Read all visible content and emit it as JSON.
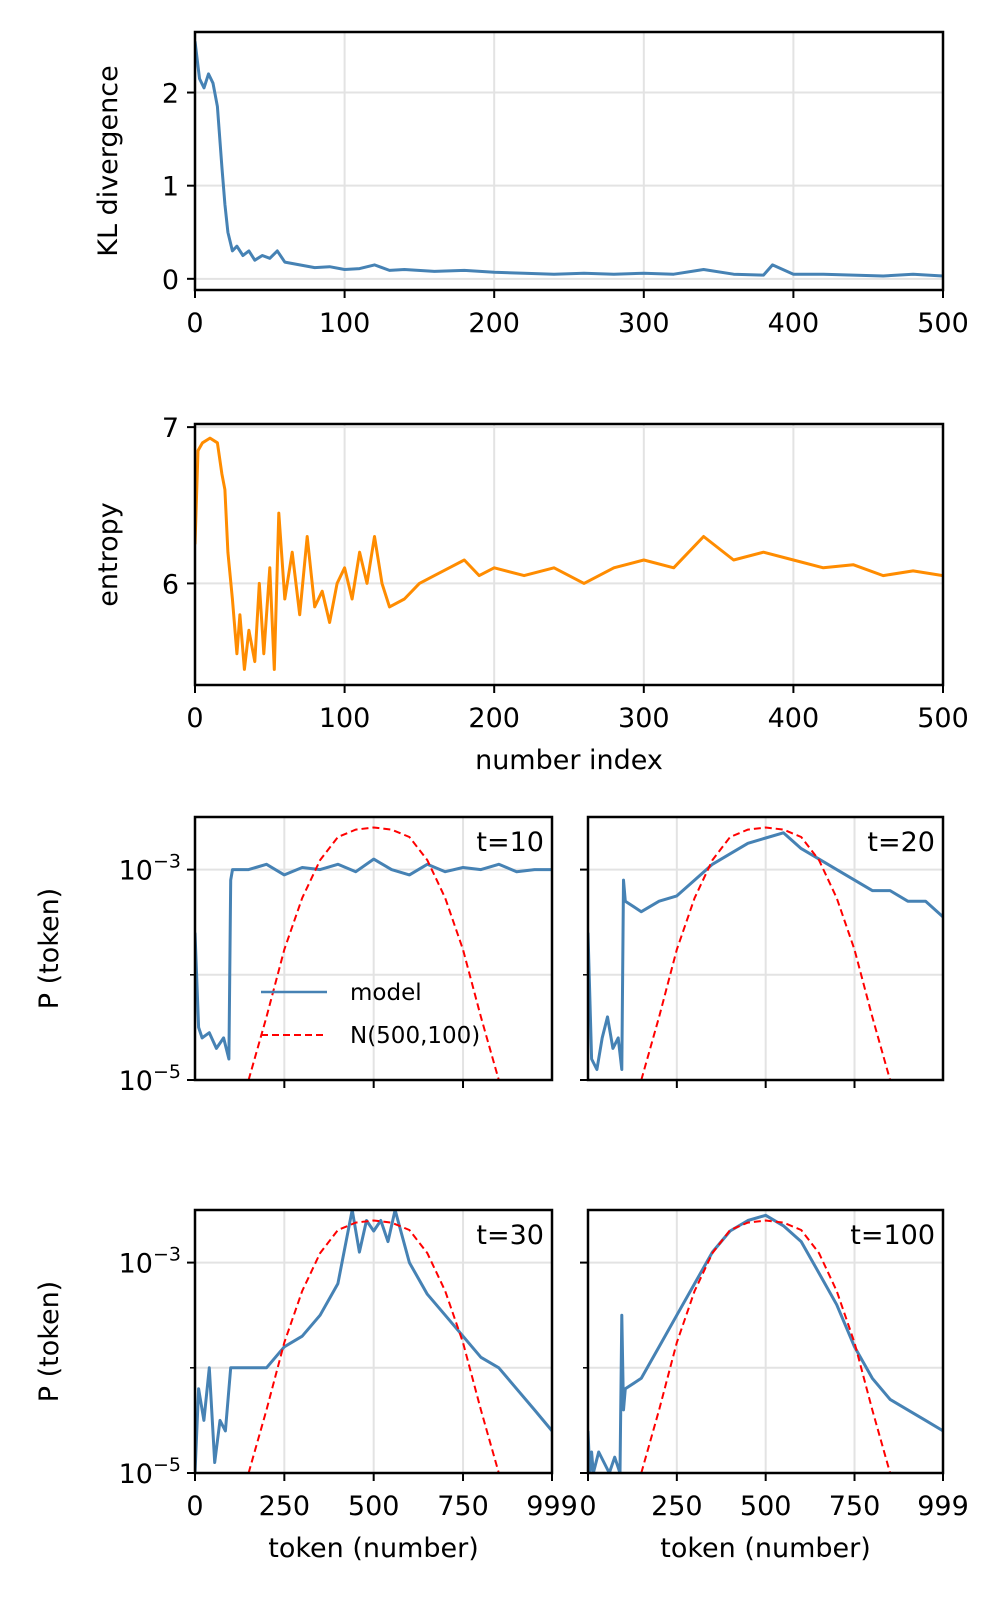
{
  "chart_data": [
    {
      "id": "kl",
      "type": "line",
      "xlabel": "",
      "ylabel": "KL divergence",
      "xlim": [
        0,
        500
      ],
      "ylim": [
        -0.12,
        2.65
      ],
      "xticks": [
        0,
        100,
        200,
        300,
        400,
        500
      ],
      "xtick_labels": [
        "0",
        "100",
        "200",
        "300",
        "400",
        "500"
      ],
      "yticks": [
        0,
        1,
        2
      ],
      "ytick_labels": [
        "0",
        "1",
        "2"
      ],
      "grid": true,
      "color": "#4682b4",
      "series": [
        {
          "name": "KL divergence",
          "x": [
            0,
            3,
            6,
            9,
            12,
            15,
            18,
            20,
            22,
            25,
            28,
            32,
            36,
            40,
            45,
            50,
            55,
            60,
            70,
            80,
            90,
            100,
            110,
            120,
            130,
            140,
            160,
            180,
            200,
            220,
            240,
            260,
            280,
            300,
            320,
            340,
            360,
            380,
            386,
            400,
            420,
            440,
            460,
            480,
            500
          ],
          "values": [
            2.55,
            2.15,
            2.05,
            2.2,
            2.1,
            1.85,
            1.2,
            0.8,
            0.5,
            0.3,
            0.35,
            0.25,
            0.3,
            0.2,
            0.25,
            0.22,
            0.3,
            0.18,
            0.15,
            0.12,
            0.13,
            0.1,
            0.11,
            0.15,
            0.09,
            0.1,
            0.08,
            0.09,
            0.07,
            0.06,
            0.05,
            0.06,
            0.05,
            0.06,
            0.05,
            0.1,
            0.05,
            0.04,
            0.15,
            0.05,
            0.05,
            0.04,
            0.03,
            0.05,
            0.03
          ]
        }
      ]
    },
    {
      "id": "entropy",
      "type": "line",
      "xlabel": "number index",
      "ylabel": "entropy",
      "xlim": [
        0,
        500
      ],
      "ylim": [
        5.35,
        7.02
      ],
      "xticks": [
        0,
        100,
        200,
        300,
        400,
        500
      ],
      "xtick_labels": [
        "0",
        "100",
        "200",
        "300",
        "400",
        "500"
      ],
      "yticks": [
        6,
        7
      ],
      "ytick_labels": [
        "6",
        "7"
      ],
      "grid": true,
      "color": "#ff8c00",
      "series": [
        {
          "name": "entropy",
          "x": [
            0,
            2,
            5,
            10,
            15,
            18,
            20,
            22,
            25,
            28,
            30,
            33,
            36,
            40,
            43,
            46,
            50,
            53,
            56,
            60,
            65,
            70,
            75,
            80,
            85,
            90,
            95,
            100,
            105,
            110,
            115,
            120,
            125,
            130,
            140,
            150,
            160,
            170,
            180,
            190,
            200,
            220,
            240,
            260,
            280,
            300,
            320,
            340,
            360,
            380,
            400,
            420,
            440,
            460,
            480,
            500
          ],
          "values": [
            6.25,
            6.85,
            6.9,
            6.93,
            6.9,
            6.7,
            6.6,
            6.2,
            5.9,
            5.55,
            5.8,
            5.45,
            5.7,
            5.5,
            6.0,
            5.55,
            6.1,
            5.45,
            6.45,
            5.9,
            6.2,
            5.8,
            6.3,
            5.85,
            5.95,
            5.75,
            6.0,
            6.1,
            5.9,
            6.2,
            6.0,
            6.3,
            6.0,
            5.85,
            5.9,
            6.0,
            6.05,
            6.1,
            6.15,
            6.05,
            6.1,
            6.05,
            6.1,
            6.0,
            6.1,
            6.15,
            6.1,
            6.3,
            6.15,
            6.2,
            6.15,
            6.1,
            6.12,
            6.05,
            6.08,
            6.05
          ]
        }
      ]
    },
    {
      "id": "t10",
      "type": "line",
      "title": "t=10",
      "xlabel": "",
      "ylabel": "P (token)",
      "yscale": "log",
      "xlim": [
        0,
        999
      ],
      "ylim_log10": [
        -5,
        -2.5
      ],
      "yticks_log10": [
        -3,
        -5
      ],
      "ytick_labels": [
        "10",
        "10"
      ],
      "ytick_exponents": [
        "−3",
        "−5"
      ],
      "xticks": [
        250,
        500,
        750
      ],
      "show_xtick_labels": false,
      "legend": [
        "model",
        "N(500,100)"
      ],
      "legend_position": "center-left",
      "series": [
        {
          "name": "model",
          "color": "#4682b4",
          "x": [
            0,
            10,
            20,
            40,
            60,
            80,
            95,
            100,
            105,
            150,
            200,
            250,
            300,
            350,
            400,
            450,
            500,
            550,
            600,
            650,
            700,
            750,
            800,
            850,
            900,
            950,
            999
          ],
          "log10_values": [
            -3.6,
            -4.5,
            -4.6,
            -4.55,
            -4.7,
            -4.6,
            -4.8,
            -3.1,
            -3.0,
            -3.0,
            -2.95,
            -3.05,
            -2.98,
            -3.0,
            -2.95,
            -3.02,
            -2.9,
            -3.0,
            -3.05,
            -2.95,
            -3.02,
            -2.98,
            -3.0,
            -2.95,
            -3.02,
            -3.0,
            -3.0
          ]
        },
        {
          "name": "N(500,100)",
          "color": "#ff0000",
          "style": "dashed",
          "x": [
            150,
            200,
            250,
            300,
            350,
            400,
            450,
            500,
            550,
            600,
            650,
            700,
            750,
            800,
            850
          ],
          "log10_values": [
            -5.0,
            -4.4,
            -3.76,
            -3.27,
            -2.91,
            -2.69,
            -2.62,
            -2.6,
            -2.62,
            -2.69,
            -2.91,
            -3.27,
            -3.76,
            -4.4,
            -5.0
          ]
        }
      ]
    },
    {
      "id": "t20",
      "type": "line",
      "title": "t=20",
      "xlabel": "",
      "ylabel": "",
      "yscale": "log",
      "xlim": [
        0,
        999
      ],
      "ylim_log10": [
        -5,
        -2.5
      ],
      "xticks": [
        250,
        500,
        750
      ],
      "show_xtick_labels": false,
      "series": [
        {
          "name": "model",
          "color": "#4682b4",
          "x": [
            0,
            10,
            25,
            40,
            55,
            70,
            85,
            95,
            100,
            105,
            150,
            200,
            250,
            300,
            350,
            400,
            450,
            500,
            550,
            600,
            650,
            700,
            750,
            800,
            850,
            900,
            950,
            999
          ],
          "log10_values": [
            -3.6,
            -4.8,
            -4.9,
            -4.6,
            -4.4,
            -4.7,
            -4.6,
            -4.9,
            -3.1,
            -3.3,
            -3.4,
            -3.3,
            -3.25,
            -3.1,
            -2.95,
            -2.85,
            -2.75,
            -2.7,
            -2.65,
            -2.8,
            -2.9,
            -3.0,
            -3.1,
            -3.2,
            -3.2,
            -3.3,
            -3.3,
            -3.45
          ]
        },
        {
          "name": "N(500,100)",
          "color": "#ff0000",
          "style": "dashed",
          "x": [
            150,
            200,
            250,
            300,
            350,
            400,
            450,
            500,
            550,
            600,
            650,
            700,
            750,
            800,
            850
          ],
          "log10_values": [
            -5.0,
            -4.4,
            -3.76,
            -3.27,
            -2.91,
            -2.69,
            -2.62,
            -2.6,
            -2.62,
            -2.69,
            -2.91,
            -3.27,
            -3.76,
            -4.4,
            -5.0
          ]
        }
      ]
    },
    {
      "id": "t30",
      "type": "line",
      "title": "t=30",
      "xlabel": "token (number)",
      "ylabel": "P (token)",
      "yscale": "log",
      "xlim": [
        0,
        999
      ],
      "ylim_log10": [
        -5,
        -2.5
      ],
      "yticks_log10": [
        -3,
        -5
      ],
      "ytick_labels": [
        "10",
        "10"
      ],
      "ytick_exponents": [
        "−3",
        "−5"
      ],
      "xticks": [
        0,
        250,
        500,
        750,
        999
      ],
      "xtick_labels": [
        "0",
        "250",
        "500",
        "750",
        "999"
      ],
      "series": [
        {
          "name": "model",
          "color": "#4682b4",
          "x": [
            0,
            10,
            25,
            40,
            55,
            70,
            85,
            100,
            150,
            200,
            250,
            300,
            350,
            400,
            440,
            460,
            480,
            500,
            520,
            540,
            560,
            600,
            650,
            700,
            750,
            800,
            850,
            900,
            950,
            999
          ],
          "log10_values": [
            -5.0,
            -4.2,
            -4.5,
            -4.0,
            -4.9,
            -4.5,
            -4.6,
            -4.0,
            -4.0,
            -4.0,
            -3.8,
            -3.7,
            -3.5,
            -3.2,
            -2.5,
            -2.9,
            -2.6,
            -2.7,
            -2.6,
            -2.8,
            -2.5,
            -3.0,
            -3.3,
            -3.5,
            -3.7,
            -3.9,
            -4.0,
            -4.2,
            -4.4,
            -4.6
          ]
        },
        {
          "name": "N(500,100)",
          "color": "#ff0000",
          "style": "dashed",
          "x": [
            150,
            200,
            250,
            300,
            350,
            400,
            450,
            500,
            550,
            600,
            650,
            700,
            750,
            800,
            850
          ],
          "log10_values": [
            -5.0,
            -4.4,
            -3.76,
            -3.27,
            -2.91,
            -2.69,
            -2.62,
            -2.6,
            -2.62,
            -2.69,
            -2.91,
            -3.27,
            -3.76,
            -4.4,
            -5.0
          ]
        }
      ]
    },
    {
      "id": "t100",
      "type": "line",
      "title": "t=100",
      "xlabel": "token (number)",
      "ylabel": "",
      "yscale": "log",
      "xlim": [
        0,
        999
      ],
      "ylim_log10": [
        -5,
        -2.5
      ],
      "xticks": [
        0,
        250,
        500,
        750,
        999
      ],
      "xtick_labels": [
        "0",
        "250",
        "500",
        "750",
        "999"
      ],
      "series": [
        {
          "name": "model",
          "color": "#4682b4",
          "x": [
            0,
            5,
            10,
            15,
            30,
            45,
            60,
            75,
            90,
            95,
            100,
            105,
            150,
            200,
            250,
            300,
            350,
            400,
            450,
            500,
            550,
            600,
            650,
            700,
            750,
            800,
            850,
            900,
            950,
            999
          ],
          "log10_values": [
            -4.6,
            -5.0,
            -4.8,
            -5.0,
            -4.8,
            -4.9,
            -5.0,
            -4.85,
            -5.0,
            -3.5,
            -4.4,
            -4.2,
            -4.1,
            -3.8,
            -3.5,
            -3.2,
            -2.9,
            -2.7,
            -2.6,
            -2.55,
            -2.65,
            -2.8,
            -3.1,
            -3.4,
            -3.8,
            -4.1,
            -4.3,
            -4.4,
            -4.5,
            -4.6
          ]
        },
        {
          "name": "N(500,100)",
          "color": "#ff0000",
          "style": "dashed",
          "x": [
            150,
            200,
            250,
            300,
            350,
            400,
            450,
            500,
            550,
            600,
            650,
            700,
            750,
            800,
            850
          ],
          "log10_values": [
            -5.0,
            -4.4,
            -3.76,
            -3.27,
            -2.91,
            -2.69,
            -2.62,
            -2.6,
            -2.62,
            -2.69,
            -2.91,
            -3.27,
            -3.76,
            -4.4,
            -5.0
          ]
        }
      ]
    }
  ]
}
